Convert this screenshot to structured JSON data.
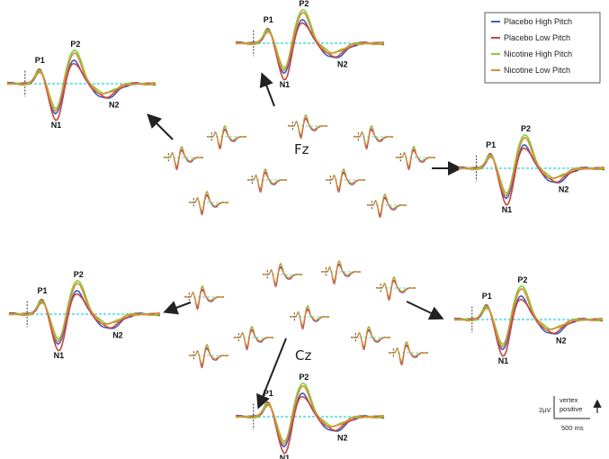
{
  "legend": [
    {
      "name": "Placebo High Pitch",
      "color": "#3b5fc4"
    },
    {
      "name": "Placebo Low Pitch",
      "color": "#c8463a"
    },
    {
      "name": "Nicotine High Pitch",
      "color": "#7dd33c"
    },
    {
      "name": "Nicotine Low Pitch",
      "color": "#e08a3c"
    }
  ],
  "electrodes": {
    "fz": "Fz",
    "cz": "Cz"
  },
  "scale_bar": {
    "amplitude": "2µV",
    "time": "500 ms",
    "polarity": "vertex\npositive",
    "polarity_line1": "vertex",
    "polarity_line2": "positive"
  },
  "baseline_color": "#7fe3e8",
  "chart_data": {
    "type": "line",
    "description_units": {
      "x": "ms",
      "y": "µV"
    },
    "component_labels": [
      "P1",
      "N1",
      "P2",
      "N2"
    ],
    "series": [
      {
        "name": "Placebo High Pitch",
        "peaks": {
          "P1": 1.2,
          "N1": -3.0,
          "P2": 2.2,
          "N2": -1.4
        }
      },
      {
        "name": "Placebo Low Pitch",
        "peaks": {
          "P1": 1.4,
          "N1": -3.6,
          "P2": 2.0,
          "N2": -1.2
        }
      },
      {
        "name": "Nicotine High Pitch",
        "peaks": {
          "P1": 1.3,
          "N1": -2.4,
          "P2": 3.2,
          "N2": -0.8
        }
      },
      {
        "name": "Nicotine Low Pitch",
        "peaks": {
          "P1": 1.1,
          "N1": -2.6,
          "P2": 2.8,
          "N2": -0.9
        }
      }
    ]
  }
}
